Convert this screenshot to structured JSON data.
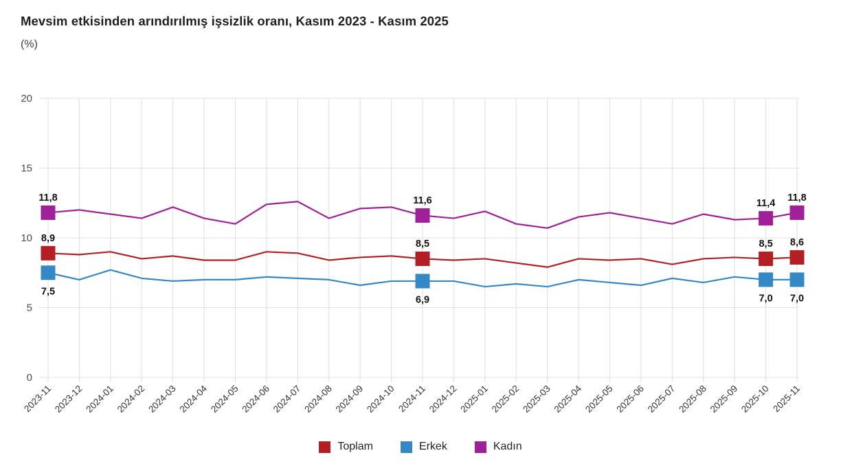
{
  "chart_data": {
    "type": "line",
    "title": "Mevsim etkisinden arındırılmış işsizlik oranı, Kasım 2023 - Kasım 2025",
    "unit_label": "(%)",
    "xlabel": "",
    "ylabel": "(%)",
    "ylim": [
      0,
      20
    ],
    "yticks": [
      0,
      5,
      10,
      15,
      20
    ],
    "grid": true,
    "legend_position": "bottom",
    "decimal_separator": ",",
    "categories": [
      "2023-11",
      "2023-12",
      "2024-01",
      "2024-02",
      "2024-03",
      "2024-04",
      "2024-05",
      "2024-06",
      "2024-07",
      "2024-08",
      "2024-09",
      "2024-10",
      "2024-11",
      "2024-12",
      "2025-01",
      "2025-02",
      "2025-03",
      "2025-04",
      "2025-05",
      "2025-06",
      "2025-07",
      "2025-08",
      "2025-09",
      "2025-10",
      "2025-11"
    ],
    "label_indices": [
      0,
      12,
      23,
      24
    ],
    "series": [
      {
        "name": "Toplam",
        "color": "#b41f24",
        "label_side": "above",
        "values": [
          8.9,
          8.8,
          9.0,
          8.5,
          8.7,
          8.4,
          8.4,
          9.0,
          8.9,
          8.4,
          8.6,
          8.7,
          8.5,
          8.4,
          8.5,
          8.2,
          7.9,
          8.5,
          8.4,
          8.5,
          8.1,
          8.5,
          8.6,
          8.5,
          8.6
        ],
        "point_labels": {
          "0": "8,9",
          "12": "8,5",
          "23": "8,5",
          "24": "8,6"
        }
      },
      {
        "name": "Erkek",
        "color": "#3488c6",
        "label_side": "below",
        "values": [
          7.5,
          7.0,
          7.7,
          7.1,
          6.9,
          7.0,
          7.0,
          7.2,
          7.1,
          7.0,
          6.6,
          6.9,
          6.9,
          6.9,
          6.5,
          6.7,
          6.5,
          7.0,
          6.8,
          6.6,
          7.1,
          6.8,
          7.2,
          7.0,
          7.0
        ],
        "point_labels": {
          "0": "7,5",
          "12": "6,9",
          "23": "7,0",
          "24": "7,0"
        }
      },
      {
        "name": "Kadın",
        "color": "#a0209a",
        "label_side": "above",
        "values": [
          11.8,
          12.0,
          11.7,
          11.4,
          12.2,
          11.4,
          11.0,
          12.4,
          12.6,
          11.4,
          12.1,
          12.2,
          11.6,
          11.4,
          11.9,
          11.0,
          10.7,
          11.5,
          11.8,
          11.4,
          11.0,
          11.7,
          11.3,
          11.4,
          11.8
        ],
        "point_labels": {
          "0": "11,8",
          "12": "11,6",
          "23": "11,4",
          "24": "11,8"
        }
      }
    ]
  }
}
